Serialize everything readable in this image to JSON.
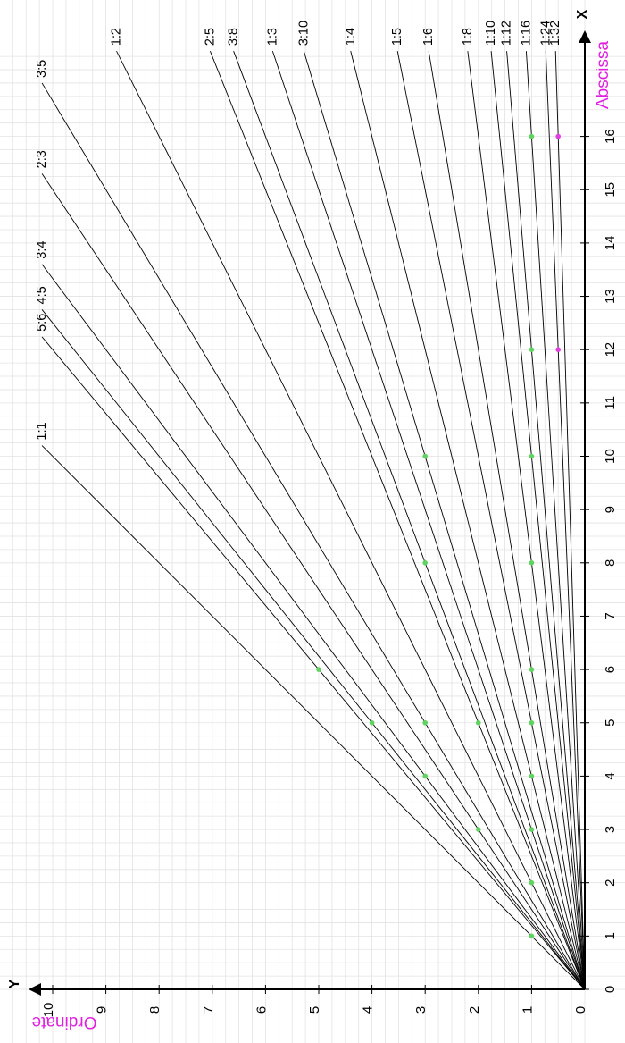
{
  "chart_data": {
    "type": "line",
    "title": "",
    "xlabel": "Abscissa",
    "ylabel": "Ordinate",
    "x_axis_letter": "X",
    "y_axis_letter": "Y",
    "xlim": [
      0,
      17.5
    ],
    "ylim": [
      0,
      10.5
    ],
    "grid": true,
    "x_ticks": [
      "0",
      "1",
      "2",
      "3",
      "4",
      "5",
      "6",
      "7",
      "8",
      "9",
      "10",
      "11",
      "12",
      "13",
      "14",
      "15",
      "16"
    ],
    "y_ticks": [
      "0",
      "1",
      "2",
      "3",
      "4",
      "5",
      "6",
      "7",
      "8",
      "9",
      "10"
    ],
    "ratio_lines": [
      {
        "label": "1:1",
        "rise": 1,
        "run": 1
      },
      {
        "label": "5:6",
        "rise": 5,
        "run": 6
      },
      {
        "label": "4:5",
        "rise": 4,
        "run": 5
      },
      {
        "label": "3:4",
        "rise": 3,
        "run": 4
      },
      {
        "label": "2:3",
        "rise": 2,
        "run": 3
      },
      {
        "label": "3:5",
        "rise": 3,
        "run": 5
      },
      {
        "label": "1:2",
        "rise": 1,
        "run": 2
      },
      {
        "label": "2:5",
        "rise": 2,
        "run": 5
      },
      {
        "label": "3:8",
        "rise": 3,
        "run": 8
      },
      {
        "label": "1:3",
        "rise": 1,
        "run": 3
      },
      {
        "label": "3:10",
        "rise": 3,
        "run": 10
      },
      {
        "label": "1:4",
        "rise": 1,
        "run": 4
      },
      {
        "label": "1:5",
        "rise": 1,
        "run": 5
      },
      {
        "label": "1:6",
        "rise": 1,
        "run": 6
      },
      {
        "label": "1:8",
        "rise": 1,
        "run": 8
      },
      {
        "label": "1:10",
        "rise": 1,
        "run": 10
      },
      {
        "label": "1:12",
        "rise": 1,
        "run": 12
      },
      {
        "label": "1:16",
        "rise": 1,
        "run": 16
      },
      {
        "label": "1:24",
        "rise": 1,
        "run": 24
      },
      {
        "label": "1:32",
        "rise": 1,
        "run": 32
      }
    ],
    "points_green": [
      [
        1,
        1
      ],
      [
        2,
        1
      ],
      [
        3,
        1
      ],
      [
        4,
        1
      ],
      [
        5,
        1
      ],
      [
        6,
        1
      ],
      [
        8,
        1
      ],
      [
        10,
        1
      ],
      [
        12,
        1
      ],
      [
        16,
        1
      ],
      [
        3,
        2
      ],
      [
        5,
        2
      ],
      [
        4,
        3
      ],
      [
        5,
        3
      ],
      [
        8,
        3
      ],
      [
        10,
        3
      ],
      [
        5,
        4
      ],
      [
        6,
        5
      ]
    ],
    "points_magenta": [
      [
        12,
        0.5
      ],
      [
        16,
        0.5
      ]
    ],
    "colors": {
      "line": "#000000",
      "grid": "#e3e3e3",
      "point_green": "#5fd35f",
      "point_magenta": "#e040e0",
      "axis_title": "#e020e0"
    }
  }
}
